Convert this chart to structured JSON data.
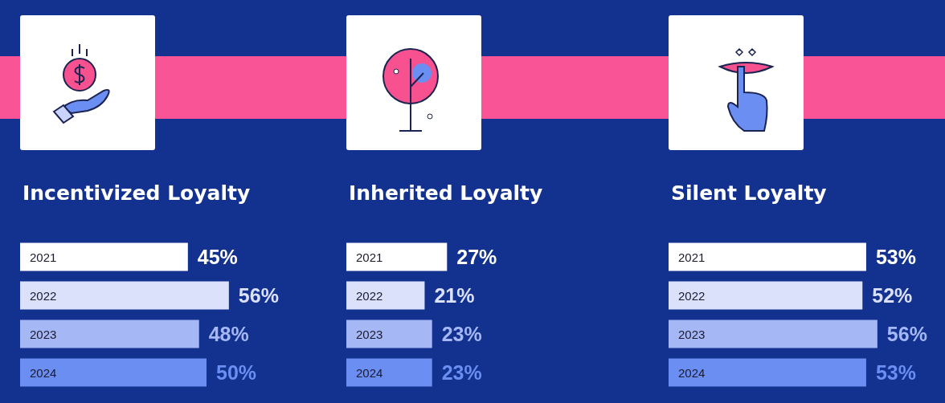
{
  "chart_data": [
    {
      "type": "bar",
      "orientation": "horizontal",
      "title": "Incentivized Loyalty",
      "categories": [
        "2021",
        "2022",
        "2023",
        "2024"
      ],
      "values": [
        45,
        56,
        48,
        50
      ],
      "value_labels": [
        "45%",
        "56%",
        "48%",
        "50%"
      ],
      "colors": [
        "#ffffff",
        "#dbe1fb",
        "#a6b7f6",
        "#6a8ef2"
      ],
      "tick_labels": "y"
    },
    {
      "type": "bar",
      "orientation": "horizontal",
      "title": "Inherited Loyalty",
      "categories": [
        "2021",
        "2022",
        "2023",
        "2024"
      ],
      "values": [
        27,
        21,
        23,
        23
      ],
      "value_labels": [
        "27%",
        "21%",
        "23%",
        "23%"
      ],
      "colors": [
        "#ffffff",
        "#dbe1fb",
        "#a6b7f6",
        "#6a8ef2"
      ],
      "tick_labels": "y"
    },
    {
      "type": "bar",
      "orientation": "horizontal",
      "title": "Silent Loyalty",
      "categories": [
        "2021",
        "2022",
        "2023",
        "2024"
      ],
      "values": [
        53,
        52,
        56,
        53
      ],
      "value_labels": [
        "53%",
        "52%",
        "56%",
        "53%"
      ],
      "colors": [
        "#ffffff",
        "#dbe1fb",
        "#a6b7f6",
        "#6a8ef2"
      ],
      "tick_labels": "y"
    }
  ]
}
